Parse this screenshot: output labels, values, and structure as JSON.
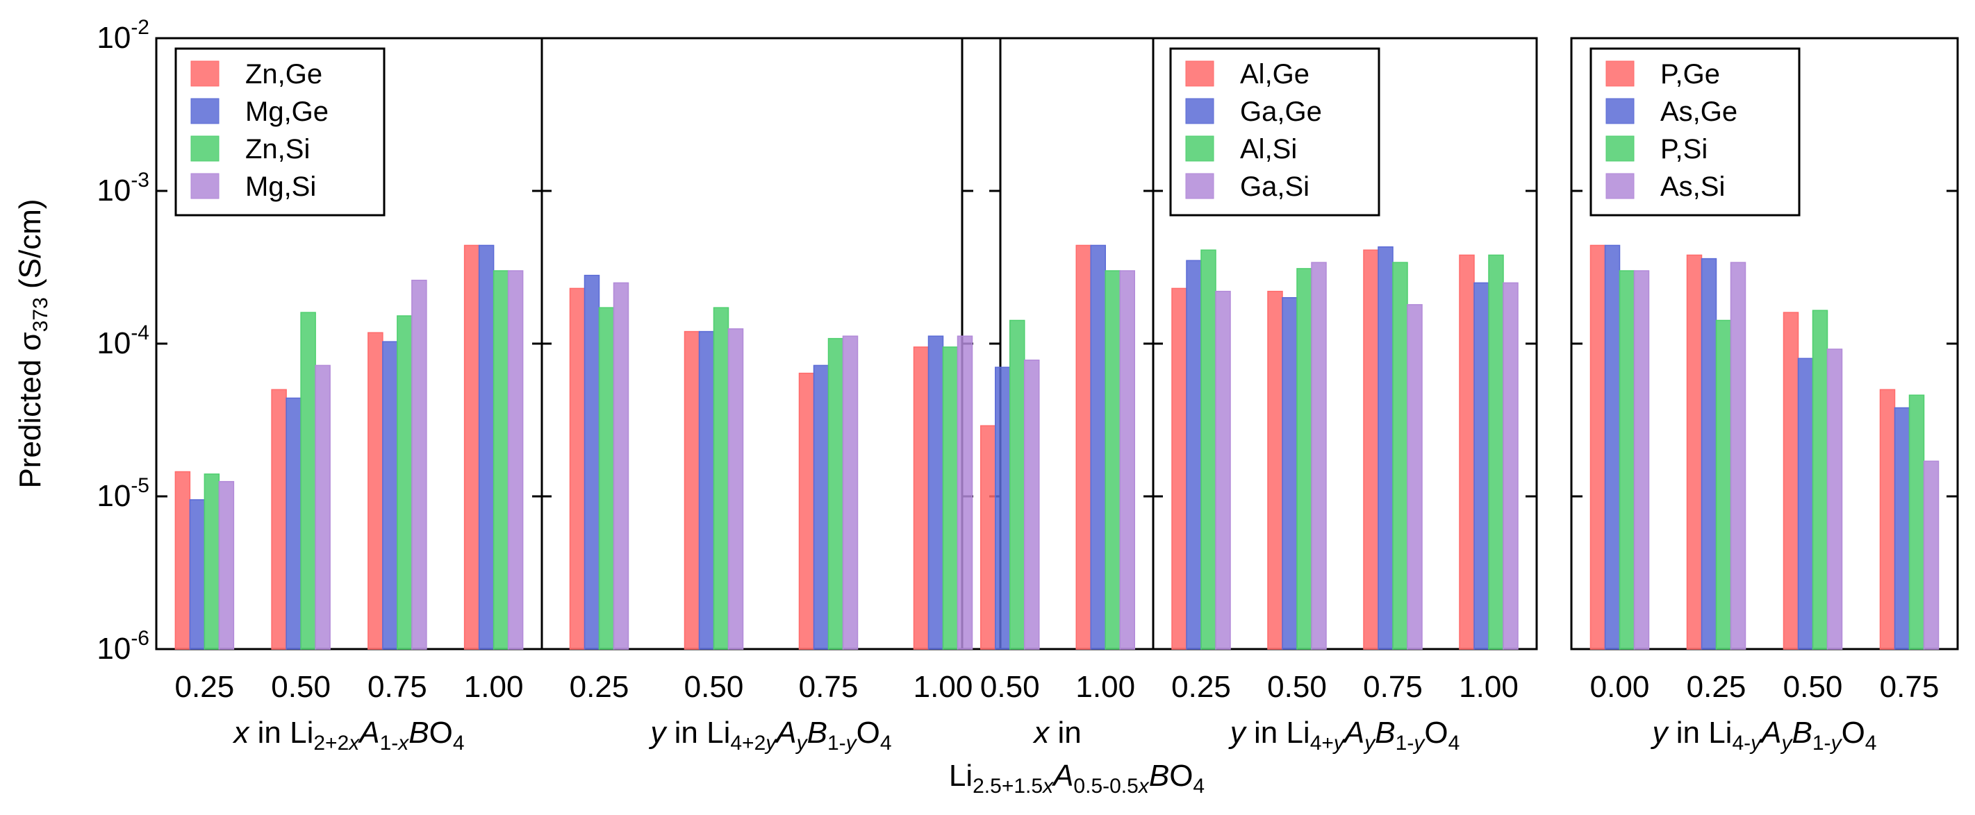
{
  "chart_data": {
    "type": "bar",
    "y_scale": "log",
    "ylabel_prefix": "Predicted σ",
    "ylabel_sub": "373",
    "ylabel_suffix": " (S/cm)",
    "ylim": [
      1e-06,
      0.01
    ],
    "y_ticks": [
      {
        "value": 0.01,
        "base": "10",
        "exp": "-2"
      },
      {
        "value": 0.001,
        "base": "10",
        "exp": "-3"
      },
      {
        "value": 0.0001,
        "base": "10",
        "exp": "-4"
      },
      {
        "value": 1e-05,
        "base": "10",
        "exp": "-5"
      },
      {
        "value": 1e-06,
        "base": "10",
        "exp": "-6"
      }
    ],
    "series_colors": [
      "#ff6b6b",
      "#5b6bd6",
      "#4fcf6f",
      "#b28ad8"
    ],
    "panels": [
      {
        "legend": [
          "Zn,Ge",
          "Mg,Ge",
          "Zn,Si",
          "Mg,Si"
        ],
        "groups": [
          {
            "categories": [
              "0.25",
              "0.50",
              "0.75",
              "1.00"
            ],
            "series": [
              {
                "name": "Zn,Ge",
                "values": [
                  1.45e-05,
                  5e-05,
                  0.000118,
                  0.00044
                ]
              },
              {
                "name": "Mg,Ge",
                "values": [
                  9.5e-06,
                  4.4e-05,
                  0.000103,
                  0.00044
                ]
              },
              {
                "name": "Zn,Si",
                "values": [
                  1.4e-05,
                  0.00016,
                  0.000152,
                  0.0003
                ]
              },
              {
                "name": "Mg,Si",
                "values": [
                  1.25e-05,
                  7.2e-05,
                  0.00026,
                  0.0003
                ]
              }
            ],
            "xlabel": [
              {
                "t": "x",
                "i": true
              },
              {
                "t": " in Li"
              },
              {
                "t": "2+2",
                "sub": true
              },
              {
                "t": "x",
                "sub": true,
                "i": true
              },
              {
                "t": "A",
                "i": true
              },
              {
                "t": "1-",
                "sub": true
              },
              {
                "t": "x",
                "sub": true,
                "i": true
              },
              {
                "t": "B",
                "i": true
              },
              {
                "t": "O"
              },
              {
                "t": "4",
                "sub": true
              }
            ]
          },
          {
            "categories": [
              "0.25",
              "0.50",
              "0.75",
              "1.00"
            ],
            "series": [
              {
                "name": "Zn,Ge",
                "values": [
                  0.00023,
                  0.00012,
                  6.4e-05,
                  9.5e-05
                ]
              },
              {
                "name": "Mg,Ge",
                "values": [
                  0.00028,
                  0.00012,
                  7.2e-05,
                  0.000112
                ]
              },
              {
                "name": "Zn,Si",
                "values": [
                  0.000172,
                  0.000172,
                  0.000108,
                  9.5e-05
                ]
              },
              {
                "name": "Mg,Si",
                "values": [
                  0.00025,
                  0.000125,
                  0.000112,
                  0.000112
                ]
              }
            ],
            "xlabel": [
              {
                "t": "y",
                "i": true
              },
              {
                "t": " in Li"
              },
              {
                "t": "4+2",
                "sub": true
              },
              {
                "t": "y",
                "sub": true,
                "i": true
              },
              {
                "t": "A",
                "i": true
              },
              {
                "t": "y",
                "sub": true,
                "i": true
              },
              {
                "t": "B",
                "i": true
              },
              {
                "t": "1-",
                "sub": true
              },
              {
                "t": "y",
                "sub": true,
                "i": true
              },
              {
                "t": "O"
              },
              {
                "t": "4",
                "sub": true
              }
            ]
          }
        ]
      },
      {
        "legend": [
          "Al,Ge",
          "Ga,Ge",
          "Al,Si",
          "Ga,Si"
        ],
        "groups": [
          {
            "categories": [
              "0.50",
              "1.00"
            ],
            "series": [
              {
                "name": "Al,Ge",
                "values": [
                  2.9e-05,
                  0.00044
                ]
              },
              {
                "name": "Ga,Ge",
                "values": [
                  7e-05,
                  0.00044
                ]
              },
              {
                "name": "Al,Si",
                "values": [
                  0.000142,
                  0.0003
                ]
              },
              {
                "name": "Ga,Si",
                "values": [
                  7.8e-05,
                  0.0003
                ]
              }
            ],
            "xlabel": [
              {
                "t": "x",
                "i": true
              },
              {
                "t": " in"
              }
            ],
            "xlabel2": [
              {
                "t": "Li"
              },
              {
                "t": "2.5+1.5",
                "sub": true
              },
              {
                "t": "x",
                "sub": true,
                "i": true
              },
              {
                "t": "A",
                "i": true
              },
              {
                "t": "0.5-0.5",
                "sub": true
              },
              {
                "t": "x",
                "sub": true,
                "i": true
              },
              {
                "t": "B",
                "i": true
              },
              {
                "t": "O"
              },
              {
                "t": "4",
                "sub": true
              }
            ]
          },
          {
            "categories": [
              "0.25",
              "0.50",
              "0.75",
              "1.00"
            ],
            "series": [
              {
                "name": "Al,Ge",
                "values": [
                  0.00023,
                  0.00022,
                  0.00041,
                  0.00038
                ]
              },
              {
                "name": "Ga,Ge",
                "values": [
                  0.00035,
                  0.0002,
                  0.00043,
                  0.00025
                ]
              },
              {
                "name": "Al,Si",
                "values": [
                  0.00041,
                  0.00031,
                  0.00034,
                  0.00038
                ]
              },
              {
                "name": "Ga,Si",
                "values": [
                  0.00022,
                  0.00034,
                  0.00018,
                  0.00025
                ]
              }
            ],
            "xlabel": [
              {
                "t": "y",
                "i": true
              },
              {
                "t": " in Li"
              },
              {
                "t": "4+",
                "sub": true
              },
              {
                "t": "y",
                "sub": true,
                "i": true
              },
              {
                "t": "A",
                "i": true
              },
              {
                "t": "y",
                "sub": true,
                "i": true
              },
              {
                "t": "B",
                "i": true
              },
              {
                "t": "1-",
                "sub": true
              },
              {
                "t": "y",
                "sub": true,
                "i": true
              },
              {
                "t": "O"
              },
              {
                "t": "4",
                "sub": true
              }
            ]
          }
        ]
      },
      {
        "legend": [
          "P,Ge",
          "As,Ge",
          "P,Si",
          "As,Si"
        ],
        "groups": [
          {
            "categories": [
              "0.00",
              "0.25",
              "0.50",
              "0.75"
            ],
            "series": [
              {
                "name": "P,Ge",
                "values": [
                  0.00044,
                  0.00038,
                  0.00016,
                  5e-05
                ]
              },
              {
                "name": "As,Ge",
                "values": [
                  0.00044,
                  0.00036,
                  8e-05,
                  3.8e-05
                ]
              },
              {
                "name": "P,Si",
                "values": [
                  0.0003,
                  0.000142,
                  0.000165,
                  4.6e-05
                ]
              },
              {
                "name": "As,Si",
                "values": [
                  0.0003,
                  0.00034,
                  9.2e-05,
                  1.7e-05
                ]
              }
            ],
            "xlabel": [
              {
                "t": "y",
                "i": true
              },
              {
                "t": " in Li"
              },
              {
                "t": "4-",
                "sub": true
              },
              {
                "t": "y",
                "sub": true,
                "i": true
              },
              {
                "t": "A",
                "i": true
              },
              {
                "t": "y",
                "sub": true,
                "i": true
              },
              {
                "t": "B",
                "i": true
              },
              {
                "t": "1-",
                "sub": true
              },
              {
                "t": "y",
                "sub": true,
                "i": true
              },
              {
                "t": "O"
              },
              {
                "t": "4",
                "sub": true
              }
            ]
          }
        ]
      }
    ]
  }
}
